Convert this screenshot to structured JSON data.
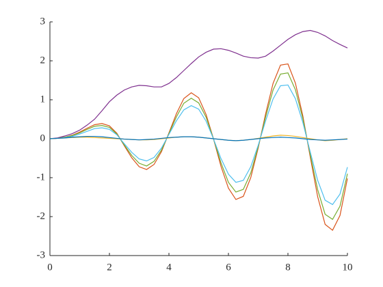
{
  "chart_data": {
    "type": "line",
    "x": [
      0,
      0.25,
      0.5,
      0.75,
      1,
      1.25,
      1.5,
      1.75,
      2,
      2.25,
      2.5,
      2.75,
      3,
      3.25,
      3.5,
      3.75,
      4,
      4.25,
      4.5,
      4.75,
      5,
      5.25,
      5.5,
      5.75,
      6,
      6.25,
      6.5,
      6.75,
      7,
      7.25,
      7.5,
      7.75,
      8,
      8.25,
      8.5,
      8.75,
      9,
      9.25,
      9.5,
      9.75,
      10
    ],
    "series": [
      {
        "color": "#7E2F8E",
        "values": [
          0,
          0.02,
          0.07,
          0.13,
          0.22,
          0.35,
          0.5,
          0.72,
          0.95,
          1.12,
          1.25,
          1.33,
          1.37,
          1.36,
          1.33,
          1.33,
          1.42,
          1.57,
          1.75,
          1.93,
          2.1,
          2.22,
          2.3,
          2.31,
          2.27,
          2.2,
          2.12,
          2.08,
          2.07,
          2.12,
          2.25,
          2.4,
          2.55,
          2.67,
          2.75,
          2.78,
          2.73,
          2.64,
          2.52,
          2.42,
          2.33
        ]
      },
      {
        "color": "#D95319",
        "values": [
          0,
          0.01,
          0.04,
          0.09,
          0.17,
          0.27,
          0.36,
          0.39,
          0.33,
          0.14,
          -0.18,
          -0.49,
          -0.72,
          -0.79,
          -0.66,
          -0.33,
          0.15,
          0.64,
          1.03,
          1.18,
          1.05,
          0.62,
          -0.01,
          -0.71,
          -1.27,
          -1.56,
          -1.48,
          -1.0,
          -0.24,
          0.64,
          1.42,
          1.89,
          1.92,
          1.43,
          0.59,
          -0.47,
          -1.49,
          -2.2,
          -2.35,
          -1.97,
          -1.02
        ]
      },
      {
        "color": "#77AC30",
        "values": [
          0,
          0.01,
          0.04,
          0.08,
          0.15,
          0.24,
          0.32,
          0.34,
          0.29,
          0.12,
          -0.16,
          -0.43,
          -0.63,
          -0.7,
          -0.58,
          -0.29,
          0.13,
          0.56,
          0.91,
          1.04,
          0.92,
          0.55,
          -0.01,
          -0.62,
          -1.12,
          -1.37,
          -1.3,
          -0.88,
          -0.21,
          0.56,
          1.25,
          1.66,
          1.69,
          1.26,
          0.52,
          -0.41,
          -1.31,
          -1.94,
          -2.07,
          -1.73,
          -0.9
        ]
      },
      {
        "color": "#4DBEEE",
        "values": [
          0,
          0.01,
          0.03,
          0.06,
          0.12,
          0.19,
          0.26,
          0.28,
          0.24,
          0.1,
          -0.13,
          -0.35,
          -0.52,
          -0.57,
          -0.48,
          -0.24,
          0.11,
          0.46,
          0.74,
          0.85,
          0.76,
          0.45,
          -0.01,
          -0.51,
          -0.91,
          -1.12,
          -1.07,
          -0.72,
          -0.17,
          0.46,
          1.02,
          1.36,
          1.38,
          1.03,
          0.42,
          -0.34,
          -1.07,
          -1.58,
          -1.69,
          -1.42,
          -0.73
        ]
      },
      {
        "color": "#EDB120",
        "values": [
          0,
          0.01,
          0.02,
          0.03,
          0.04,
          0.04,
          0.03,
          0.02,
          0.01,
          0,
          -0.01,
          -0.02,
          -0.03,
          -0.03,
          -0.02,
          0,
          0.02,
          0.04,
          0.05,
          0.05,
          0.04,
          0.02,
          0,
          -0.02,
          -0.04,
          -0.05,
          -0.04,
          -0.02,
          0.01,
          0.04,
          0.07,
          0.09,
          0.08,
          0.06,
          0.03,
          0,
          -0.03,
          -0.05,
          -0.04,
          -0.02,
          0
        ]
      },
      {
        "color": "#0072BD",
        "values": [
          0,
          0.01,
          0.02,
          0.04,
          0.05,
          0.06,
          0.06,
          0.05,
          0.03,
          0.01,
          -0.01,
          -0.02,
          -0.03,
          -0.02,
          -0.01,
          0.01,
          0.03,
          0.04,
          0.05,
          0.05,
          0.04,
          0.02,
          0,
          -0.02,
          -0.04,
          -0.05,
          -0.04,
          -0.02,
          0,
          0.02,
          0.03,
          0.04,
          0.03,
          0.02,
          0,
          -0.02,
          -0.03,
          -0.04,
          -0.03,
          -0.02,
          -0.01
        ]
      }
    ],
    "xlim": [
      0,
      10
    ],
    "xticks": [
      0,
      2,
      4,
      6,
      8,
      10
    ],
    "ylim": [
      -3,
      3
    ],
    "yticks": [
      -3,
      -2,
      -1,
      0,
      1,
      2,
      3
    ],
    "grid": false
  }
}
